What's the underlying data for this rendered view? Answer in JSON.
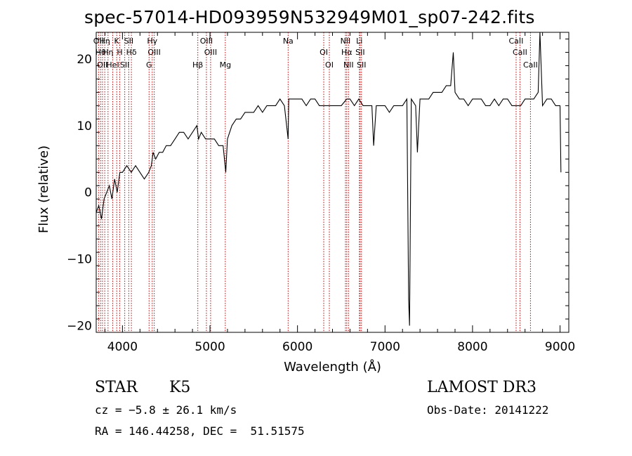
{
  "chart_data": {
    "type": "line",
    "title": "spec-57014-HD093959N532949M01_sp07-242.fits",
    "xlabel": "Wavelength (Å)",
    "ylabel": "Flux (relative)",
    "xlim": [
      3700,
      9100
    ],
    "ylim": [
      -21,
      24
    ],
    "x_ticks": [
      4000,
      5000,
      6000,
      7000,
      8000,
      9000
    ],
    "y_ticks": [
      -20,
      -10,
      0,
      10,
      20
    ],
    "line_color": "#000000",
    "marker_color": "#cc0000",
    "grid": false,
    "series": [
      {
        "x": [
          3700,
          3730,
          3760,
          3790,
          3820,
          3850,
          3880,
          3910,
          3940,
          3970,
          4000,
          4050,
          4100,
          4150,
          4200,
          4250,
          4300,
          4330,
          4350,
          4380,
          4420,
          4460,
          4500,
          4550,
          4600,
          4650,
          4700,
          4750,
          4800,
          4850,
          4870,
          4900,
          4950,
          5000,
          5050,
          5100,
          5150,
          5180,
          5200,
          5250,
          5300,
          5350,
          5400,
          5450,
          5500,
          5550,
          5600,
          5650,
          5700,
          5750,
          5800,
          5850,
          5893,
          5900,
          5950,
          6000,
          6050,
          6100,
          6150,
          6200,
          6250,
          6300,
          6350,
          6400,
          6450,
          6500,
          6563,
          6600,
          6650,
          6700,
          6750,
          6800,
          6850,
          6870,
          6900,
          6950,
          7000,
          7050,
          7100,
          7150,
          7200,
          7250,
          7270,
          7280,
          7300,
          7350,
          7370,
          7400,
          7450,
          7500,
          7550,
          7600,
          7650,
          7700,
          7750,
          7780,
          7800,
          7850,
          7900,
          7950,
          8000,
          8050,
          8100,
          8150,
          8200,
          8250,
          8300,
          8350,
          8400,
          8450,
          8500,
          8550,
          8600,
          8650,
          8700,
          8750,
          8770,
          8800,
          8850,
          8900,
          8950,
          9000,
          9010
        ],
        "y": [
          -3,
          -2,
          -4,
          -1,
          0,
          1,
          -1,
          2,
          0,
          3,
          3,
          4,
          3,
          4,
          3,
          2,
          3,
          4,
          6,
          5,
          6,
          6,
          7,
          7,
          8,
          9,
          9,
          8,
          9,
          10,
          8,
          9,
          8,
          8,
          8,
          7,
          7,
          3,
          8,
          10,
          11,
          11,
          12,
          12,
          12,
          13,
          12,
          13,
          13,
          13,
          14,
          13,
          8,
          14,
          14,
          14,
          14,
          13,
          14,
          14,
          13,
          13,
          13,
          13,
          13,
          13,
          14,
          14,
          13,
          14,
          13,
          13,
          13,
          7,
          13,
          13,
          13,
          12,
          13,
          13,
          13,
          14,
          -16,
          -20,
          14,
          13,
          6,
          14,
          14,
          14,
          15,
          15,
          15,
          16,
          16,
          21,
          15,
          14,
          14,
          13,
          14,
          14,
          14,
          13,
          13,
          14,
          13,
          14,
          14,
          13,
          13,
          13,
          14,
          14,
          14,
          15,
          26,
          13,
          14,
          14,
          13,
          13,
          3
        ]
      }
    ],
    "line_markers": [
      {
        "x": 3727,
        "label": "OII"
      },
      {
        "x": 3750,
        "label": "Hθ"
      },
      {
        "x": 3771,
        "label": "OII"
      },
      {
        "x": 3798,
        "label": "Hη"
      },
      {
        "x": 3835,
        "label": "Hη"
      },
      {
        "x": 3889,
        "label": "HeI"
      },
      {
        "x": 3934,
        "label": "K"
      },
      {
        "x": 3969,
        "label": "H"
      },
      {
        "x": 4026,
        "label": "SII"
      },
      {
        "x": 4072,
        "label": "SII"
      },
      {
        "x": 4102,
        "label": "Hδ"
      },
      {
        "x": 4304,
        "label": "G"
      },
      {
        "x": 4340,
        "label": "Hγ"
      },
      {
        "x": 4363,
        "label": "OIII"
      },
      {
        "x": 4861,
        "label": "Hβ"
      },
      {
        "x": 4959,
        "label": "OIII"
      },
      {
        "x": 5007,
        "label": "OIII"
      },
      {
        "x": 5175,
        "label": "Mg"
      },
      {
        "x": 5893,
        "label": "Na"
      },
      {
        "x": 6300,
        "label": "OI"
      },
      {
        "x": 6364,
        "label": "OI"
      },
      {
        "x": 6548,
        "label": "NII"
      },
      {
        "x": 6563,
        "label": "Hα"
      },
      {
        "x": 6583,
        "label": "NII"
      },
      {
        "x": 6707,
        "label": "Li"
      },
      {
        "x": 6716,
        "label": "SII"
      },
      {
        "x": 6731,
        "label": "SII"
      },
      {
        "x": 8498,
        "label": "CaII"
      },
      {
        "x": 8542,
        "label": "CaII"
      },
      {
        "x": 8662,
        "label": "CaII"
      }
    ]
  },
  "info": {
    "object_class": "STAR",
    "subclass": "K5",
    "survey": "LAMOST DR3",
    "cz": "cz = −5.8 ± 26.1 km/s",
    "obs_date": "Obs-Date: 20141222",
    "coords": "RA = 146.44258, DEC =  51.51575"
  }
}
